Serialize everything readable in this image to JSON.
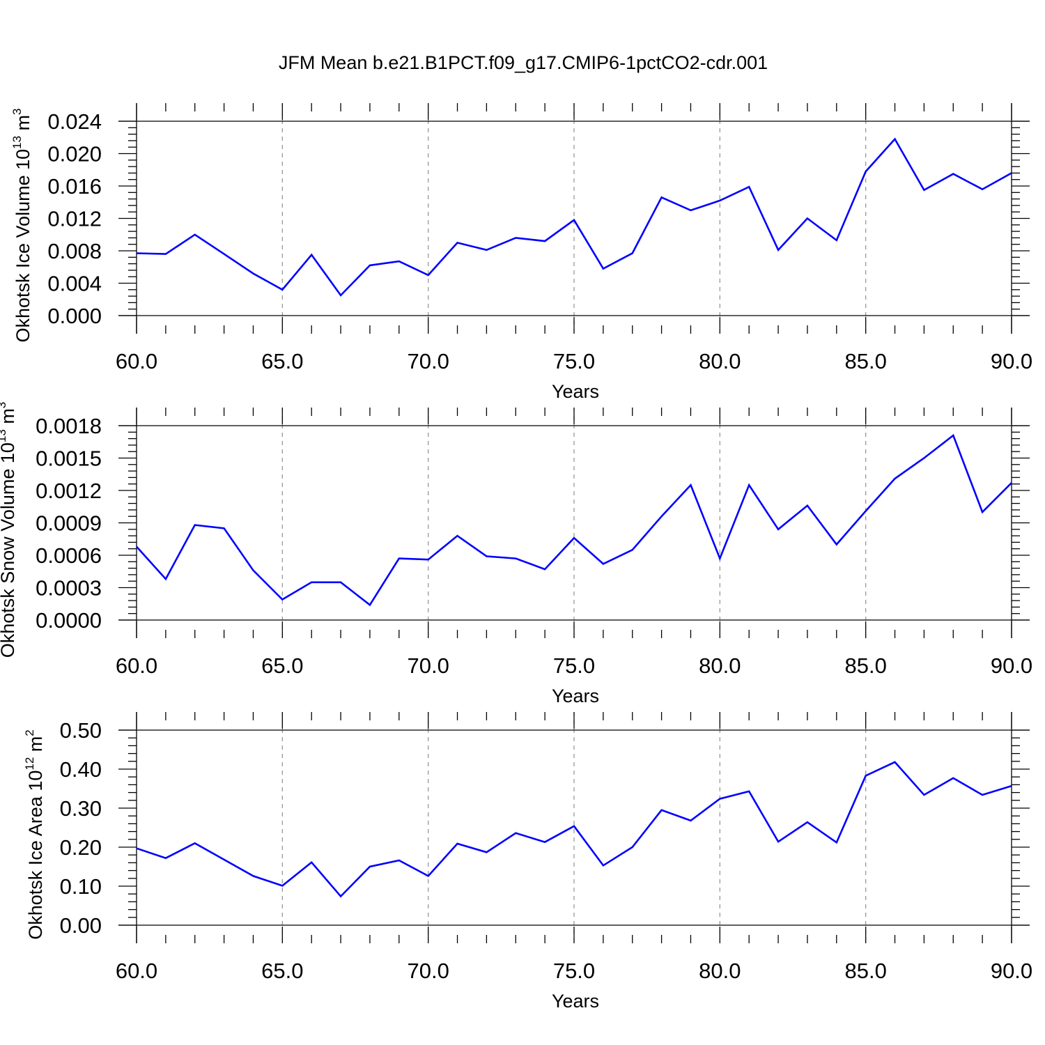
{
  "title": "JFM Mean b.e21.B1PCT.f09_g17.CMIP6-1pctCO2-cdr.001",
  "colors": {
    "line": "#0000ff",
    "grid": "#999999",
    "axes": "#000000"
  },
  "chart_data": [
    {
      "type": "line",
      "xlabel": "Years",
      "ylabel_text": "Okhotsk Ice Volume 10",
      "ylabel_exp": "13",
      "ylabel_unit": " m",
      "ylabel_unit_exp": "3",
      "xlim": [
        60,
        90
      ],
      "ylim": [
        0,
        0.024
      ],
      "grid_x": true,
      "xticks": [
        "60.0",
        "65.0",
        "70.0",
        "75.0",
        "80.0",
        "85.0",
        "90.0"
      ],
      "yticks": [
        "0.000",
        "0.004",
        "0.008",
        "0.012",
        "0.016",
        "0.020",
        "0.024"
      ],
      "x": [
        60,
        61,
        62,
        63,
        64,
        65,
        66,
        67,
        68,
        69,
        70,
        71,
        72,
        73,
        74,
        75,
        76,
        77,
        78,
        79,
        80,
        81,
        82,
        83,
        84,
        85,
        86,
        87,
        88,
        89,
        90
      ],
      "y": [
        0.0077,
        0.0076,
        0.01,
        0.0076,
        0.0052,
        0.0032,
        0.0075,
        0.0025,
        0.0062,
        0.0067,
        0.005,
        0.009,
        0.0081,
        0.0096,
        0.0092,
        0.0118,
        0.0058,
        0.0077,
        0.0146,
        0.013,
        0.0142,
        0.0159,
        0.0081,
        0.012,
        0.0093,
        0.0178,
        0.0218,
        0.0155,
        0.0175,
        0.0156,
        0.0176
      ]
    },
    {
      "type": "line",
      "xlabel": "Years",
      "ylabel_text": "Okhotsk Snow Volume 10",
      "ylabel_exp": "13",
      "ylabel_unit": " m",
      "ylabel_unit_exp": "3",
      "xlim": [
        60,
        90
      ],
      "ylim": [
        0,
        0.0018
      ],
      "grid_x": true,
      "xticks": [
        "60.0",
        "65.0",
        "70.0",
        "75.0",
        "80.0",
        "85.0",
        "90.0"
      ],
      "yticks": [
        "0.0000",
        "0.0003",
        "0.0006",
        "0.0009",
        "0.0012",
        "0.0015",
        "0.0018"
      ],
      "x": [
        60,
        61,
        62,
        63,
        64,
        65,
        66,
        67,
        68,
        69,
        70,
        71,
        72,
        73,
        74,
        75,
        76,
        77,
        78,
        79,
        80,
        81,
        82,
        83,
        84,
        85,
        86,
        87,
        88,
        89,
        90
      ],
      "y": [
        0.00068,
        0.00038,
        0.00088,
        0.00085,
        0.00046,
        0.00019,
        0.00035,
        0.00035,
        0.00014,
        0.00057,
        0.00056,
        0.00078,
        0.00059,
        0.00057,
        0.00047,
        0.00076,
        0.00052,
        0.00065,
        0.00096,
        0.00125,
        0.00057,
        0.00125,
        0.00084,
        0.00106,
        0.0007,
        0.00101,
        0.00131,
        0.0015,
        0.00171,
        0.001,
        0.00127
      ]
    },
    {
      "type": "line",
      "xlabel": "Years",
      "ylabel_text": "Okhotsk Ice Area 10",
      "ylabel_exp": "12",
      "ylabel_unit": " m",
      "ylabel_unit_exp": "2",
      "xlim": [
        60,
        90
      ],
      "ylim": [
        0,
        0.5
      ],
      "grid_x": true,
      "xticks": [
        "60.0",
        "65.0",
        "70.0",
        "75.0",
        "80.0",
        "85.0",
        "90.0"
      ],
      "yticks": [
        "0.00",
        "0.10",
        "0.20",
        "0.30",
        "0.40",
        "0.50"
      ],
      "x": [
        60,
        61,
        62,
        63,
        64,
        65,
        66,
        67,
        68,
        69,
        70,
        71,
        72,
        73,
        74,
        75,
        76,
        77,
        78,
        79,
        80,
        81,
        82,
        83,
        84,
        85,
        86,
        87,
        88,
        89,
        90
      ],
      "y": [
        0.197,
        0.172,
        0.21,
        0.168,
        0.126,
        0.101,
        0.161,
        0.074,
        0.15,
        0.166,
        0.126,
        0.209,
        0.187,
        0.236,
        0.213,
        0.254,
        0.153,
        0.2,
        0.295,
        0.268,
        0.324,
        0.343,
        0.214,
        0.264,
        0.212,
        0.383,
        0.418,
        0.334,
        0.377,
        0.334,
        0.357
      ]
    }
  ]
}
